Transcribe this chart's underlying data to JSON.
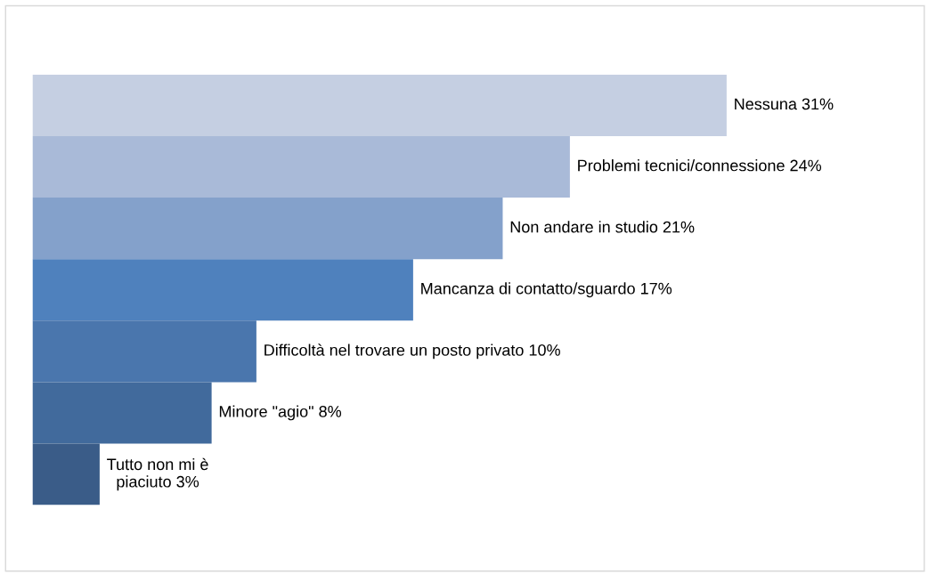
{
  "chart_data": {
    "type": "bar",
    "orientation": "horizontal",
    "categories": [
      null,
      null,
      null,
      null,
      null,
      null,
      null
    ],
    "values": [
      31,
      24,
      21,
      17,
      10,
      8,
      3
    ],
    "colors": [
      "#c5cfe2",
      "#a9bad8",
      "#84a1cb",
      "#4f81bd",
      "#4a76ad",
      "#416a9c",
      "#3a5c88"
    ],
    "value_labels": [
      "Nessuna 31%",
      "Problemi tecnici/connessione 24%",
      "Non andare in studio 21%",
      "Mancanza di contatto/sguardo 17%",
      "Difficoltà nel trovare un posto privato 10%",
      "Minore \"agio\" 8%",
      "Tutto non mi è\npiaciuto 3%"
    ],
    "tick_labels": false,
    "grid": false,
    "legend": false
  }
}
